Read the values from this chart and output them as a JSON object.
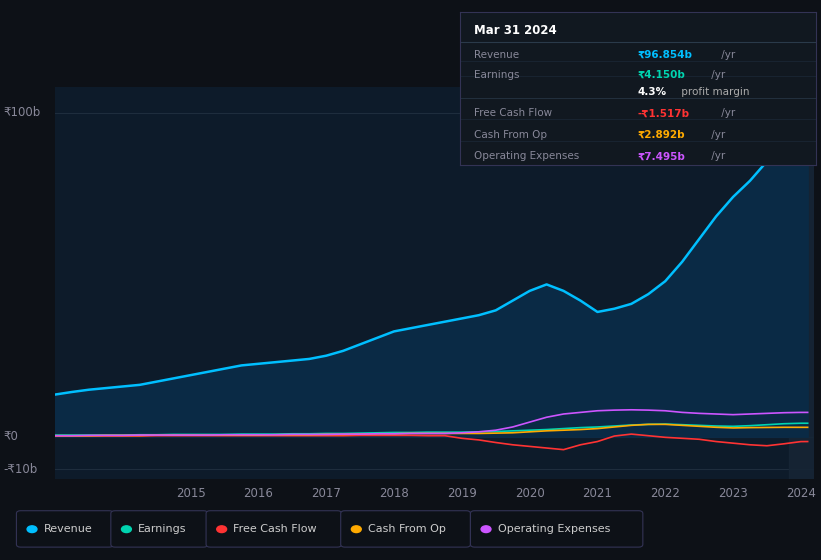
{
  "background_color": "#0d1117",
  "plot_bg_color": "#0d1b2a",
  "x_years": [
    2013.0,
    2013.25,
    2013.5,
    2013.75,
    2014.0,
    2014.25,
    2014.5,
    2014.75,
    2015.0,
    2015.25,
    2015.5,
    2015.75,
    2016.0,
    2016.25,
    2016.5,
    2016.75,
    2017.0,
    2017.25,
    2017.5,
    2017.75,
    2018.0,
    2018.25,
    2018.5,
    2018.75,
    2019.0,
    2019.25,
    2019.5,
    2019.75,
    2020.0,
    2020.25,
    2020.5,
    2020.75,
    2021.0,
    2021.25,
    2021.5,
    2021.75,
    2022.0,
    2022.25,
    2022.5,
    2022.75,
    2023.0,
    2023.25,
    2023.5,
    2023.75,
    2024.0,
    2024.1
  ],
  "revenue": [
    13.0,
    13.8,
    14.5,
    15.0,
    15.5,
    16.0,
    17.0,
    18.0,
    19.0,
    20.0,
    21.0,
    22.0,
    22.5,
    23.0,
    23.5,
    24.0,
    25.0,
    26.5,
    28.5,
    30.5,
    32.5,
    33.5,
    34.5,
    35.5,
    36.5,
    37.5,
    39.0,
    42.0,
    45.0,
    47.0,
    45.0,
    42.0,
    38.5,
    39.5,
    41.0,
    44.0,
    48.0,
    54.0,
    61.0,
    68.0,
    74.0,
    79.0,
    85.0,
    91.0,
    96.854,
    97.0
  ],
  "earnings": [
    0.5,
    0.5,
    0.5,
    0.5,
    0.5,
    0.6,
    0.6,
    0.7,
    0.7,
    0.7,
    0.7,
    0.8,
    0.8,
    0.8,
    0.9,
    0.9,
    1.0,
    1.0,
    1.1,
    1.2,
    1.3,
    1.3,
    1.4,
    1.4,
    1.4,
    1.5,
    1.6,
    1.8,
    2.0,
    2.2,
    2.5,
    2.8,
    3.0,
    3.3,
    3.6,
    3.8,
    3.9,
    3.7,
    3.5,
    3.3,
    3.2,
    3.4,
    3.7,
    4.0,
    4.15,
    4.15
  ],
  "free_cash_flow": [
    0.2,
    0.2,
    0.2,
    0.2,
    0.2,
    0.2,
    0.3,
    0.3,
    0.3,
    0.3,
    0.3,
    0.3,
    0.3,
    0.3,
    0.3,
    0.3,
    0.3,
    0.3,
    0.4,
    0.4,
    0.4,
    0.4,
    0.3,
    0.3,
    -0.5,
    -1.0,
    -1.8,
    -2.5,
    -3.0,
    -3.5,
    -4.0,
    -2.5,
    -1.5,
    0.2,
    0.8,
    0.3,
    -0.2,
    -0.5,
    -0.8,
    -1.5,
    -2.0,
    -2.5,
    -2.8,
    -2.2,
    -1.517,
    -1.5
  ],
  "cash_from_op": [
    0.3,
    0.3,
    0.3,
    0.4,
    0.4,
    0.4,
    0.5,
    0.5,
    0.5,
    0.5,
    0.5,
    0.5,
    0.5,
    0.6,
    0.6,
    0.6,
    0.7,
    0.7,
    0.8,
    0.9,
    0.9,
    1.0,
    1.0,
    1.0,
    1.0,
    1.0,
    1.1,
    1.2,
    1.5,
    1.8,
    2.0,
    2.2,
    2.5,
    3.0,
    3.5,
    3.8,
    3.8,
    3.5,
    3.2,
    2.9,
    2.7,
    2.8,
    2.85,
    2.9,
    2.892,
    2.892
  ],
  "op_expenses": [
    0.3,
    0.3,
    0.4,
    0.4,
    0.4,
    0.5,
    0.5,
    0.5,
    0.5,
    0.5,
    0.6,
    0.6,
    0.6,
    0.6,
    0.7,
    0.7,
    0.7,
    0.8,
    0.8,
    0.9,
    0.9,
    1.0,
    1.0,
    1.0,
    1.2,
    1.5,
    2.0,
    3.0,
    4.5,
    6.0,
    7.0,
    7.5,
    8.0,
    8.2,
    8.3,
    8.2,
    8.0,
    7.5,
    7.2,
    7.0,
    6.8,
    7.0,
    7.2,
    7.4,
    7.495,
    7.495
  ],
  "revenue_color": "#00bfff",
  "earnings_color": "#00d4b0",
  "free_cash_flow_color": "#ff3333",
  "cash_from_op_color": "#ffaa00",
  "op_expenses_color": "#cc55ff",
  "revenue_fill_color": "#0a2a45",
  "ylabel_100b": "₹100b",
  "ylabel_0": "₹0",
  "ylabel_neg10b": "-₹10b",
  "x_tick_labels": [
    "2015",
    "2016",
    "2017",
    "2018",
    "2019",
    "2020",
    "2021",
    "2022",
    "2023",
    "2024"
  ],
  "x_tick_positions": [
    2015,
    2016,
    2017,
    2018,
    2019,
    2020,
    2021,
    2022,
    2023,
    2024
  ],
  "legend_items": [
    {
      "label": "Revenue",
      "color": "#00bfff"
    },
    {
      "label": "Earnings",
      "color": "#00d4b0"
    },
    {
      "label": "Free Cash Flow",
      "color": "#ff3333"
    },
    {
      "label": "Cash From Op",
      "color": "#ffaa00"
    },
    {
      "label": "Operating Expenses",
      "color": "#cc55ff"
    }
  ],
  "tooltip_date": "Mar 31 2024",
  "tooltip_rows": [
    {
      "label": "Revenue",
      "value": "₹96.854b /yr",
      "color": "#00bfff",
      "sep_after": false
    },
    {
      "label": "Earnings",
      "value": "₹4.150b /yr",
      "color": "#00d4b0",
      "sep_after": false
    },
    {
      "label": "",
      "value": "4.3% profit margin",
      "color": "#cccccc",
      "sep_after": true
    },
    {
      "label": "Free Cash Flow",
      "value": "-₹1.517b /yr",
      "color": "#ff3333",
      "sep_after": false
    },
    {
      "label": "Cash From Op",
      "value": "₹2.892b /yr",
      "color": "#ffaa00",
      "sep_after": false
    },
    {
      "label": "Operating Expenses",
      "value": "₹7.495b /yr",
      "color": "#cc55ff",
      "sep_after": false
    }
  ]
}
